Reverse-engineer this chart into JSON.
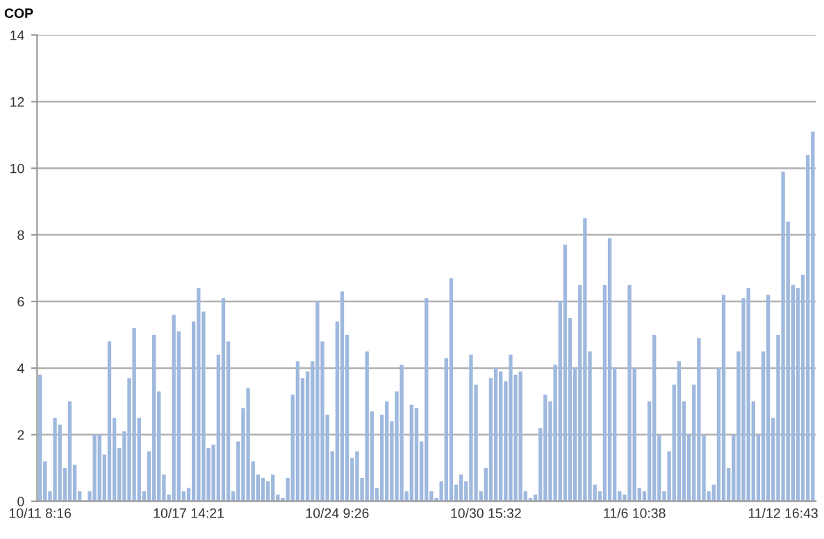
{
  "chart_data": {
    "type": "bar",
    "ylabel": "COP",
    "categories": [
      "10/11 8:16",
      null,
      null,
      null,
      null,
      null,
      null,
      null,
      null,
      null,
      null,
      null,
      null,
      null,
      null,
      null,
      null,
      null,
      null,
      null,
      null,
      null,
      null,
      null,
      null,
      null,
      null,
      null,
      null,
      null,
      "10/17 14:21",
      null,
      null,
      null,
      null,
      null,
      null,
      null,
      null,
      null,
      null,
      null,
      null,
      null,
      null,
      null,
      null,
      null,
      null,
      null,
      null,
      null,
      null,
      null,
      null,
      null,
      null,
      null,
      null,
      null,
      "10/24 9:26",
      null,
      null,
      null,
      null,
      null,
      null,
      null,
      null,
      null,
      null,
      null,
      null,
      null,
      null,
      null,
      null,
      null,
      null,
      null,
      null,
      null,
      null,
      null,
      null,
      null,
      null,
      null,
      null,
      null,
      "10/30 15:32",
      null,
      null,
      null,
      null,
      null,
      null,
      null,
      null,
      null,
      null,
      null,
      null,
      null,
      null,
      null,
      null,
      null,
      null,
      null,
      null,
      null,
      null,
      null,
      null,
      null,
      null,
      null,
      null,
      null,
      "11/6 10:38",
      null,
      null,
      null,
      null,
      null,
      null,
      null,
      null,
      null,
      null,
      null,
      null,
      null,
      null,
      null,
      null,
      null,
      null,
      null,
      null,
      null,
      null,
      null,
      null,
      null,
      null,
      null,
      null,
      null,
      "11/12 16:43",
      null,
      null,
      null,
      null,
      null,
      null
    ],
    "values": [
      3.8,
      1.2,
      0.3,
      2.5,
      2.3,
      1.0,
      3.0,
      1.1,
      0.3,
      0.0,
      0.3,
      2.0,
      2.0,
      1.4,
      4.8,
      2.5,
      1.6,
      2.1,
      3.7,
      5.2,
      2.5,
      0.3,
      1.5,
      5.0,
      3.3,
      0.8,
      0.2,
      5.6,
      5.1,
      0.3,
      0.4,
      5.4,
      6.4,
      5.7,
      1.6,
      1.7,
      4.4,
      6.1,
      4.8,
      0.3,
      1.8,
      2.8,
      3.4,
      1.2,
      0.8,
      0.7,
      0.6,
      0.8,
      0.2,
      0.1,
      0.7,
      3.2,
      4.2,
      3.7,
      3.9,
      4.2,
      6.0,
      4.8,
      2.6,
      1.5,
      5.4,
      6.3,
      5.0,
      1.3,
      1.5,
      0.7,
      4.5,
      2.7,
      0.4,
      2.6,
      3.0,
      2.4,
      3.3,
      4.1,
      0.3,
      2.9,
      2.8,
      1.8,
      6.1,
      0.3,
      0.1,
      0.6,
      4.3,
      6.7,
      0.5,
      0.8,
      0.6,
      4.4,
      3.5,
      0.3,
      1.0,
      3.7,
      4.0,
      3.9,
      3.6,
      4.4,
      3.8,
      3.9,
      0.3,
      0.1,
      0.2,
      2.2,
      3.2,
      3.0,
      4.1,
      6.0,
      7.7,
      5.5,
      4.0,
      6.5,
      8.5,
      4.5,
      0.5,
      0.3,
      6.5,
      7.9,
      4.0,
      0.3,
      0.2,
      6.5,
      4.0,
      0.4,
      0.3,
      3.0,
      5.0,
      2.0,
      0.3,
      1.5,
      3.5,
      4.2,
      3.0,
      2.0,
      3.5,
      4.9,
      2.0,
      0.3,
      0.5,
      4.0,
      6.2,
      1.0,
      2.0,
      4.5,
      6.1,
      6.4,
      3.0,
      2.0,
      4.5,
      6.2,
      2.5,
      5.0,
      9.9,
      8.4,
      6.5,
      6.4,
      6.8,
      10.4,
      11.1
    ],
    "color": "#9fb9de",
    "ylim": [
      0,
      14
    ],
    "yticks": [
      0,
      2,
      4,
      6,
      8,
      10,
      12,
      14
    ],
    "grid": "y"
  }
}
